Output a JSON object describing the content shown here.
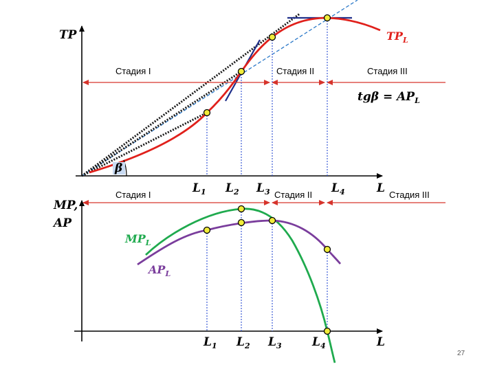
{
  "slide": {
    "page_number": "27"
  },
  "top_graph": {
    "y_axis_label": "TP",
    "x_axis_label": "L",
    "curve_label_main": "TP",
    "curve_label_sub": "L",
    "formula_main": "tgβ = AP",
    "formula_sub": "L",
    "angle_label": "β",
    "stages": [
      "Стадия I",
      "Стадия II",
      "Стадия III"
    ],
    "l_marks": [
      {
        "main": "L",
        "sub": "1"
      },
      {
        "main": "L",
        "sub": "2"
      },
      {
        "main": "L",
        "sub": "3"
      },
      {
        "main": "L",
        "sub": "4"
      }
    ]
  },
  "bottom_graph": {
    "y_axis_label_line1": "MP,",
    "y_axis_label_line2": "AP",
    "x_axis_label": "L",
    "mp_label_main": "MP",
    "mp_label_sub": "L",
    "ap_label_main": "AP",
    "ap_label_sub": "L",
    "stages": [
      "Стадия I",
      "Стадия II",
      "Стадия III"
    ],
    "l_marks": [
      {
        "main": "L",
        "sub": "1"
      },
      {
        "main": "L",
        "sub": "2"
      },
      {
        "main": "L",
        "sub": "3"
      },
      {
        "main": "L",
        "sub": "4"
      }
    ]
  },
  "colors": {
    "tp_curve": "#e0201b",
    "mp_curve": "#1faa4e",
    "ap_curve": "#7a3d9c",
    "stage_arrow": "#d6342c",
    "guide": "#3b5bd6",
    "tangent": "#1f2f8a",
    "ray": "#2a78c8",
    "marker_fill": "#f1ec3a"
  }
}
